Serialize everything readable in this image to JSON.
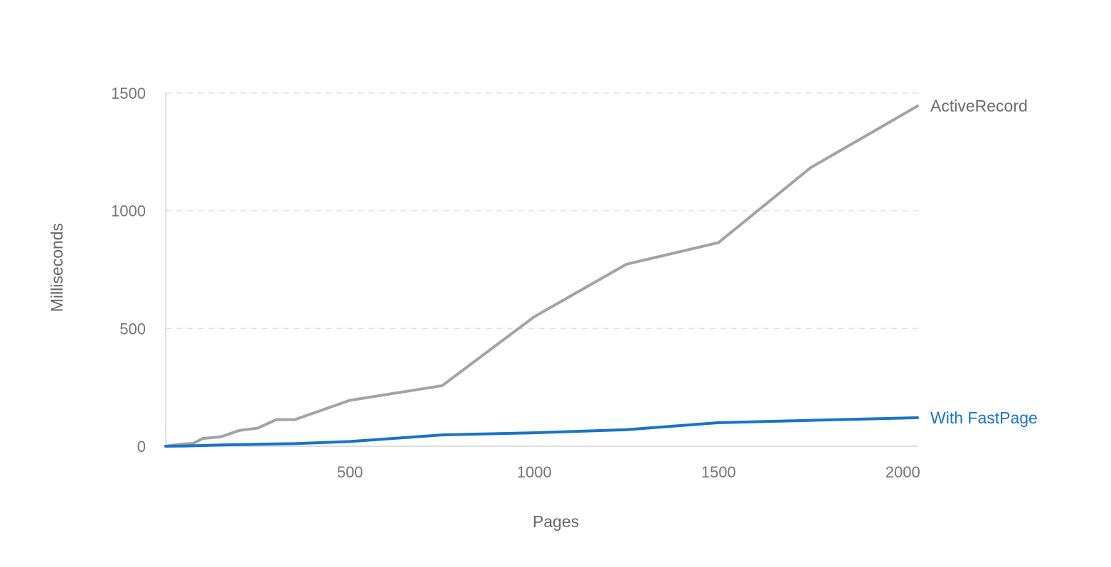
{
  "chart_data": {
    "type": "line",
    "title": "",
    "xlabel": "Pages",
    "ylabel": "Milliseconds",
    "xlim": [
      0,
      2040
    ],
    "ylim": [
      0,
      1500
    ],
    "x_ticks": [
      500,
      1000,
      1500,
      2000
    ],
    "y_ticks": [
      0,
      500,
      1000,
      1500
    ],
    "grid": "horizontal-dashed",
    "legend": "inline-right",
    "series": [
      {
        "name": "ActiveRecord",
        "color": "#a3a3a3",
        "points": [
          [
            0,
            0
          ],
          [
            50,
            10
          ],
          [
            75,
            12
          ],
          [
            100,
            33
          ],
          [
            150,
            40
          ],
          [
            200,
            67
          ],
          [
            250,
            77
          ],
          [
            300,
            113
          ],
          [
            350,
            113
          ],
          [
            500,
            195
          ],
          [
            750,
            257
          ],
          [
            1000,
            550
          ],
          [
            1250,
            773
          ],
          [
            1500,
            865
          ],
          [
            1750,
            1183
          ],
          [
            2040,
            1445
          ]
        ]
      },
      {
        "name": "With FastPage",
        "color": "#1a73c8",
        "points": [
          [
            0,
            0
          ],
          [
            50,
            1
          ],
          [
            100,
            3
          ],
          [
            150,
            5
          ],
          [
            200,
            7
          ],
          [
            250,
            8
          ],
          [
            300,
            10
          ],
          [
            350,
            11
          ],
          [
            500,
            20
          ],
          [
            750,
            48
          ],
          [
            1000,
            57
          ],
          [
            1250,
            70
          ],
          [
            1500,
            100
          ],
          [
            1750,
            110
          ],
          [
            2040,
            121
          ]
        ]
      }
    ]
  }
}
